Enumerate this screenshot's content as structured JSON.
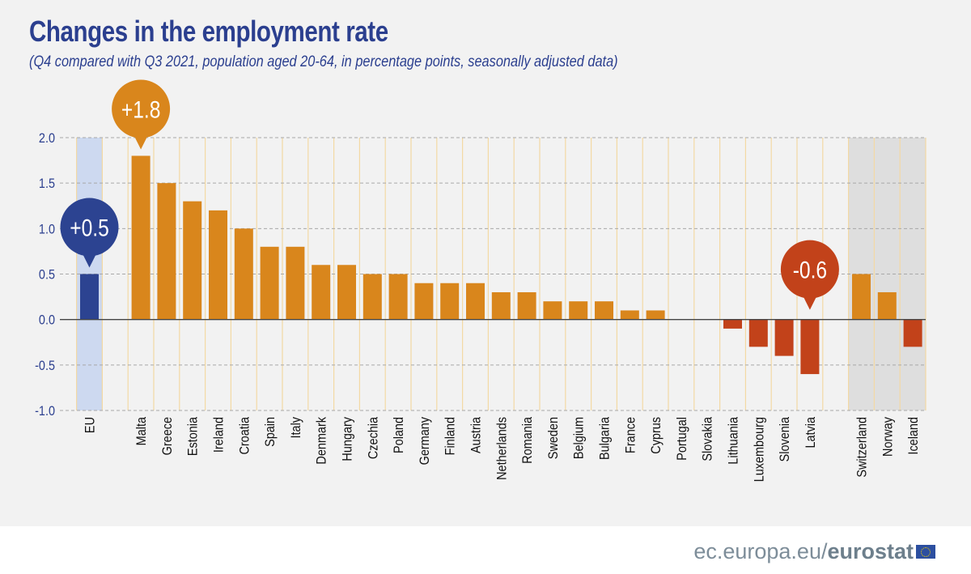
{
  "title": "Changes in the employment rate",
  "subtitle": "(Q4 compared with Q3 2021, population aged 20-64, in percentage points, seasonally adjusted data)",
  "footer": {
    "site": "ec.europa.eu/",
    "brand": "eurostat"
  },
  "colors": {
    "eu": "#2c4391",
    "positive": "#d9861c",
    "negative": "#c2421a",
    "eu_band": "#cdd9f0",
    "efta_band": "#dedede",
    "text": "#2b3f8f"
  },
  "chart_data": {
    "type": "bar",
    "title": "Changes in the employment rate",
    "ylim": [
      -1.0,
      2.0
    ],
    "yticks": [
      "2.0",
      "1.5",
      "1.0",
      "0.5",
      "0.0",
      "-0.5",
      "-1.0"
    ],
    "grid": true,
    "categories": [
      "EU",
      "Malta",
      "Greece",
      "Estonia",
      "Ireland",
      "Croatia",
      "Spain",
      "Italy",
      "Denmark",
      "Hungary",
      "Czechia",
      "Poland",
      "Germany",
      "Finland",
      "Austria",
      "Netherlands",
      "Romania",
      "Sweden",
      "Belgium",
      "Bulgaria",
      "France",
      "Cyprus",
      "Portugal",
      "Slovakia",
      "Lithuania",
      "Luxembourg",
      "Slovenia",
      "Latvia",
      "Switzerland",
      "Norway",
      "Iceland"
    ],
    "values": [
      0.5,
      1.8,
      1.5,
      1.3,
      1.2,
      1.0,
      0.8,
      0.8,
      0.6,
      0.6,
      0.5,
      0.5,
      0.4,
      0.4,
      0.4,
      0.3,
      0.3,
      0.2,
      0.2,
      0.2,
      0.1,
      0.1,
      0.0,
      0.0,
      -0.1,
      -0.3,
      -0.4,
      -0.6,
      0.5,
      0.3,
      -0.3
    ],
    "groups": {
      "EU": [
        "EU"
      ],
      "EFTA": [
        "Switzerland",
        "Norway",
        "Iceland"
      ]
    },
    "callouts": [
      {
        "category": "EU",
        "label": "+0.5"
      },
      {
        "category": "Malta",
        "label": "+1.8"
      },
      {
        "category": "Latvia",
        "label": "-0.6"
      }
    ]
  }
}
